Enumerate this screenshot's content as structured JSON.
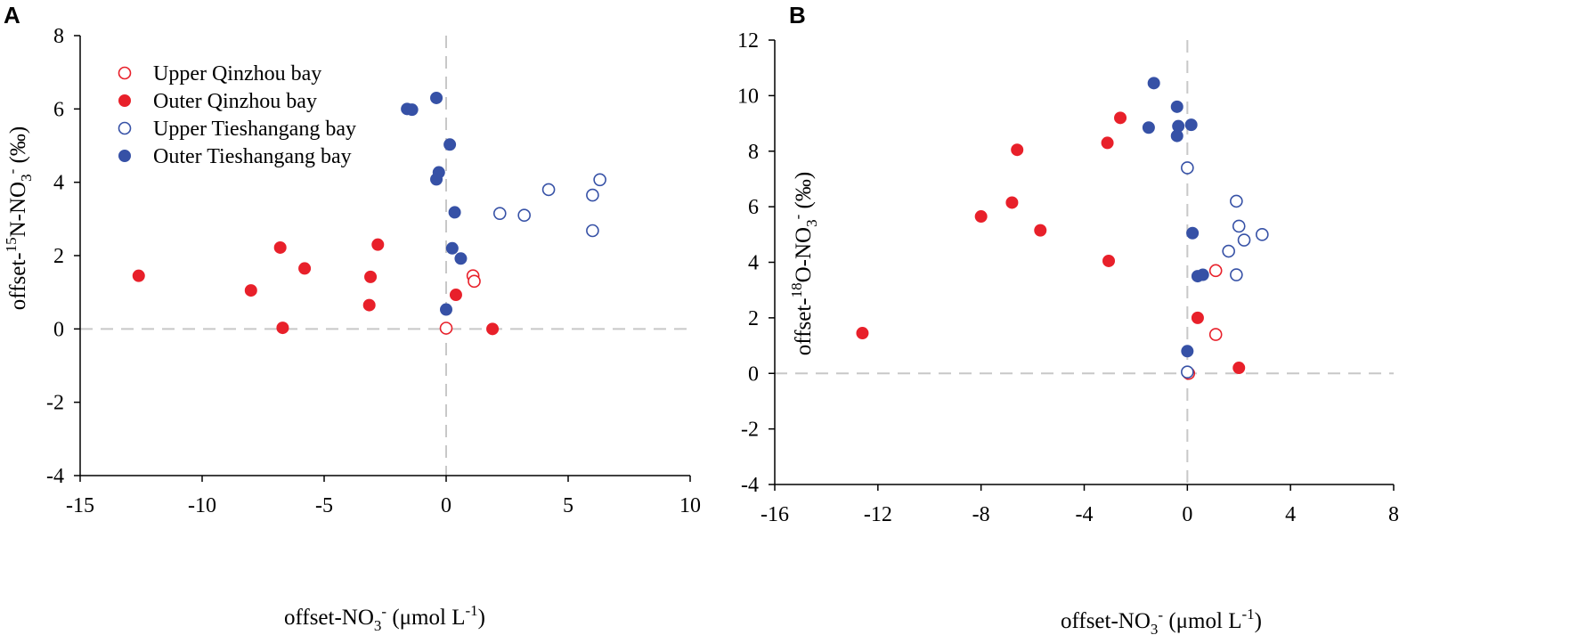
{
  "colors": {
    "red": "#e8202a",
    "blue": "#3651a6",
    "zero_line": "#c8c8c8"
  },
  "legend": {
    "items": [
      {
        "key": "upper_qinzhou",
        "label": "Upper Qinzhou bay"
      },
      {
        "key": "outer_qinzhou",
        "label": "Outer Qinzhou bay"
      },
      {
        "key": "upper_tieshangang",
        "label": "Upper Tieshangang bay"
      },
      {
        "key": "outer_tieshangang",
        "label": "Outer Tieshangang bay"
      }
    ]
  },
  "chart_data": [
    {
      "panel": "A",
      "type": "scatter",
      "xlabel": {
        "pre": "offset-NO",
        "sub": "3",
        "sup": "-",
        "post": " (μmol L",
        "post_sup": "-1",
        "end": ")"
      },
      "ylabel": {
        "pre": "offset-",
        "sup": "15",
        "mid": "N-NO",
        "sub": "3",
        "sup2": "-",
        "post": " (‰)"
      },
      "xlim": [
        -15,
        10
      ],
      "ylim": [
        -4,
        8
      ],
      "xticks": [
        -15,
        -10,
        -5,
        0,
        5,
        10
      ],
      "yticks": [
        -4,
        -2,
        0,
        2,
        4,
        6,
        8
      ],
      "series": [
        {
          "key": "upper_qinzhou",
          "color": "red",
          "filled": false,
          "points": [
            [
              0,
              0.02
            ],
            [
              1.1,
              1.45
            ],
            [
              1.15,
              1.3
            ]
          ]
        },
        {
          "key": "outer_qinzhou",
          "color": "red",
          "filled": true,
          "points": [
            [
              -12.6,
              1.45
            ],
            [
              -8.0,
              1.05
            ],
            [
              -6.8,
              2.22
            ],
            [
              -6.7,
              0.03
            ],
            [
              -5.8,
              1.65
            ],
            [
              -3.1,
              1.42
            ],
            [
              -3.15,
              0.65
            ],
            [
              -2.8,
              2.3
            ],
            [
              0.4,
              0.93
            ],
            [
              1.9,
              0.0
            ]
          ]
        },
        {
          "key": "upper_tieshangang",
          "color": "blue",
          "filled": false,
          "points": [
            [
              2.2,
              3.15
            ],
            [
              3.2,
              3.1
            ],
            [
              4.2,
              3.8
            ],
            [
              6.0,
              3.65
            ],
            [
              6.3,
              4.07
            ],
            [
              6.0,
              2.68
            ]
          ]
        },
        {
          "key": "outer_tieshangang",
          "color": "blue",
          "filled": true,
          "points": [
            [
              -1.6,
              6.0
            ],
            [
              -1.4,
              5.98
            ],
            [
              -0.4,
              6.3
            ],
            [
              0.15,
              5.03
            ],
            [
              -0.3,
              4.27
            ],
            [
              -0.4,
              4.08
            ],
            [
              0.35,
              3.18
            ],
            [
              0.25,
              2.2
            ],
            [
              0.6,
              1.92
            ],
            [
              0.0,
              0.53
            ]
          ]
        }
      ]
    },
    {
      "panel": "B",
      "type": "scatter",
      "xlabel": {
        "pre": "offset-NO",
        "sub": "3",
        "sup": "-",
        "post": " (μmol L",
        "post_sup": "-1",
        "end": ")"
      },
      "ylabel": {
        "pre": "offset-",
        "sup": "18",
        "mid": "O-NO",
        "sub": "3",
        "sup2": "-",
        "post": " (‰)"
      },
      "xlim": [
        -16,
        8
      ],
      "ylim": [
        -4,
        12
      ],
      "xticks": [
        -16,
        -12,
        -8,
        -4,
        0,
        4,
        8
      ],
      "yticks": [
        -4,
        -2,
        0,
        2,
        4,
        6,
        8,
        10,
        12
      ],
      "series": [
        {
          "key": "upper_qinzhou",
          "color": "red",
          "filled": false,
          "points": [
            [
              1.1,
              3.7
            ],
            [
              1.1,
              1.4
            ],
            [
              0.05,
              0.0
            ]
          ]
        },
        {
          "key": "outer_qinzhou",
          "color": "red",
          "filled": true,
          "points": [
            [
              -12.6,
              1.45
            ],
            [
              -8.0,
              5.65
            ],
            [
              -6.8,
              6.15
            ],
            [
              -6.6,
              8.05
            ],
            [
              -5.7,
              5.15
            ],
            [
              -3.1,
              8.3
            ],
            [
              -3.05,
              4.05
            ],
            [
              -2.6,
              9.2
            ],
            [
              0.4,
              2.0
            ],
            [
              2.0,
              0.2
            ]
          ]
        },
        {
          "key": "upper_tieshangang",
          "color": "blue",
          "filled": false,
          "points": [
            [
              0.0,
              7.4
            ],
            [
              1.9,
              6.2
            ],
            [
              2.0,
              5.3
            ],
            [
              2.2,
              4.8
            ],
            [
              2.9,
              5.0
            ],
            [
              1.6,
              4.4
            ],
            [
              1.9,
              3.55
            ],
            [
              0.0,
              0.05
            ]
          ]
        },
        {
          "key": "outer_tieshangang",
          "color": "blue",
          "filled": true,
          "points": [
            [
              -1.3,
              10.45
            ],
            [
              -1.5,
              8.85
            ],
            [
              -0.4,
              9.6
            ],
            [
              -0.35,
              8.9
            ],
            [
              -0.4,
              8.55
            ],
            [
              0.15,
              8.95
            ],
            [
              0.2,
              5.05
            ],
            [
              0.4,
              3.5
            ],
            [
              0.6,
              3.55
            ],
            [
              0.0,
              0.8
            ]
          ]
        }
      ]
    }
  ]
}
